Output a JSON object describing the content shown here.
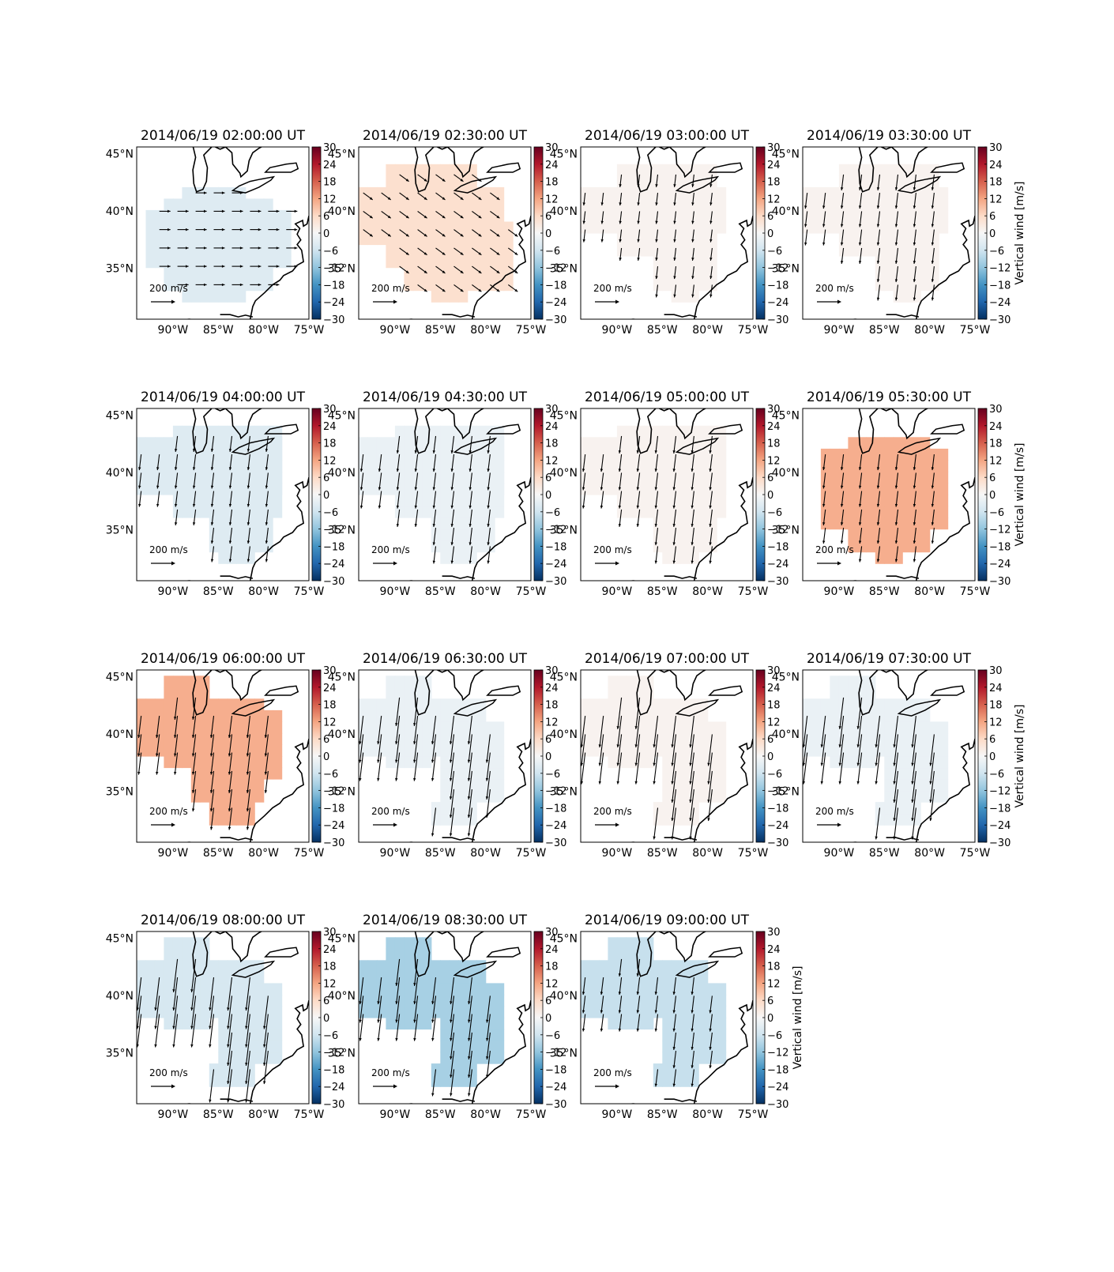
{
  "figure": {
    "colorbar_label": "Vertical wind [m/s]",
    "colorbar_ticks": [
      "30",
      "24",
      "18",
      "12",
      "6",
      "0",
      "−6",
      "−12",
      "−18",
      "−24",
      "−30"
    ],
    "lat_ticks": [
      "45°N",
      "40°N",
      "35°N"
    ],
    "lon_ticks": [
      "90°W",
      "85°W",
      "80°W",
      "75°W"
    ],
    "quiver_key_label": "200 m/s",
    "colormap": "RdBu_r",
    "colors": {
      "max": "#67001f",
      "zero": "#f7f7f7",
      "min": "#053061"
    }
  },
  "chart_data": {
    "type": "map-panels",
    "vmin": -30,
    "vmax": 30,
    "panels": [
      {
        "title": "2014/06/19 02:00:00 UT",
        "vertical_wind": -4,
        "wind_dir": "east",
        "arrow_length": 0.35,
        "colorbar_label_visible": false
      },
      {
        "title": "2014/06/19 02:30:00 UT",
        "vertical_wind": 5,
        "wind_dir": "southeast",
        "arrow_length": 0.4,
        "colorbar_label_visible": false
      },
      {
        "title": "2014/06/19 03:00:00 UT",
        "vertical_wind": 1,
        "wind_dir": "south",
        "arrow_length": 0.4,
        "colorbar_label_visible": false
      },
      {
        "title": "2014/06/19 03:30:00 UT",
        "vertical_wind": 1,
        "wind_dir": "south",
        "arrow_length": 0.5,
        "colorbar_label_visible": true
      },
      {
        "title": "2014/06/19 04:00:00 UT",
        "vertical_wind": -4,
        "wind_dir": "south",
        "arrow_length": 0.5,
        "colorbar_label_visible": false
      },
      {
        "title": "2014/06/19 04:30:00 UT",
        "vertical_wind": -2,
        "wind_dir": "south",
        "arrow_length": 0.55,
        "colorbar_label_visible": false
      },
      {
        "title": "2014/06/19 05:00:00 UT",
        "vertical_wind": 1,
        "wind_dir": "south",
        "arrow_length": 0.55,
        "colorbar_label_visible": false
      },
      {
        "title": "2014/06/19 05:30:00 UT",
        "vertical_wind": 11,
        "wind_dir": "south",
        "arrow_length": 0.5,
        "colorbar_label_visible": true
      },
      {
        "title": "2014/06/19 06:00:00 UT",
        "vertical_wind": 11,
        "wind_dir": "south",
        "arrow_length": 0.7,
        "colorbar_label_visible": false
      },
      {
        "title": "2014/06/19 06:30:00 UT",
        "vertical_wind": -2,
        "wind_dir": "south",
        "arrow_length": 0.9,
        "colorbar_label_visible": false
      },
      {
        "title": "2014/06/19 07:00:00 UT",
        "vertical_wind": 1,
        "wind_dir": "south",
        "arrow_length": 1.0,
        "colorbar_label_visible": false
      },
      {
        "title": "2014/06/19 07:30:00 UT",
        "vertical_wind": -2,
        "wind_dir": "south",
        "arrow_length": 1.0,
        "colorbar_label_visible": true
      },
      {
        "title": "2014/06/19 08:00:00 UT",
        "vertical_wind": -5,
        "wind_dir": "south",
        "arrow_length": 1.05,
        "colorbar_label_visible": false
      },
      {
        "title": "2014/06/19 08:30:00 UT",
        "vertical_wind": -10,
        "wind_dir": "south",
        "arrow_length": 0.85,
        "colorbar_label_visible": false
      },
      {
        "title": "2014/06/19 09:00:00 UT",
        "vertical_wind": -7,
        "wind_dir": "south",
        "arrow_length": 0.55,
        "colorbar_label_visible": true
      }
    ]
  }
}
